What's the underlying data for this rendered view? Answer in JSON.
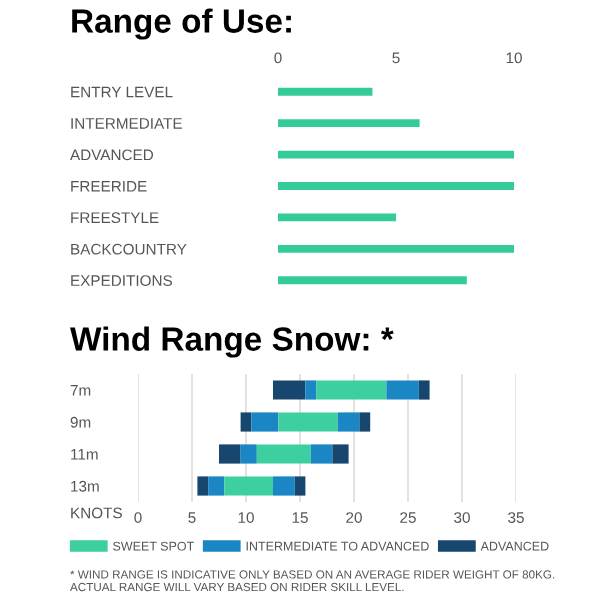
{
  "chart_data": [
    {
      "type": "bar",
      "orientation": "horizontal",
      "title": "Range of Use:",
      "categories": [
        "ENTRY LEVEL",
        "INTERMEDIATE",
        "ADVANCED",
        "FREERIDE",
        "FREESTYLE",
        "BACKCOUNTRY",
        "EXPEDITIONS"
      ],
      "values": [
        4,
        6,
        10,
        10,
        5,
        10,
        8
      ],
      "color": "#33cc99",
      "xlim": [
        0,
        10
      ],
      "xticks": [
        0,
        5,
        10
      ]
    },
    {
      "type": "bar",
      "orientation": "horizontal",
      "title": "Wind Range Snow: *",
      "xlabel": "KNOTS",
      "categories": [
        "7m",
        "9m",
        "11m",
        "13m"
      ],
      "series": [
        {
          "color": "#17476f",
          "base": [
            12.5,
            9.5,
            7.5,
            5.5
          ],
          "values": [
            3,
            1,
            2,
            1
          ]
        },
        {
          "color": "#1a86c4",
          "base": [
            15.5,
            10.5,
            9.5,
            6.5
          ],
          "values": [
            1,
            2.5,
            1.5,
            1.5
          ]
        },
        {
          "name": "SWEET SPOT",
          "color": "#3ecfa0",
          "base": [
            16.5,
            13,
            11,
            8
          ],
          "values": [
            6.5,
            5.5,
            5,
            4.5
          ]
        },
        {
          "name": "INTERMEDIATE TO ADVANCED",
          "color": "#1a86c4",
          "base": [
            23,
            18.5,
            16,
            12.5
          ],
          "values": [
            3,
            2,
            2,
            2
          ]
        },
        {
          "name": "ADVANCED",
          "color": "#17476f",
          "base": [
            26,
            20.5,
            18,
            14.5
          ],
          "values": [
            1,
            1,
            1.5,
            1
          ]
        }
      ],
      "xlim": [
        0,
        35
      ],
      "xticks": [
        0,
        5,
        10,
        15,
        20,
        25,
        30,
        35
      ],
      "grid": "x",
      "legend": "bottom",
      "annotations": [
        "* WIND RANGE IS INDICATIVE ONLY BASED ON AN AVERAGE RIDER WEIGHT OF 80KG. ACTUAL RANGE WILL VARY BASED ON RIDER SKILL LEVEL."
      ]
    }
  ]
}
